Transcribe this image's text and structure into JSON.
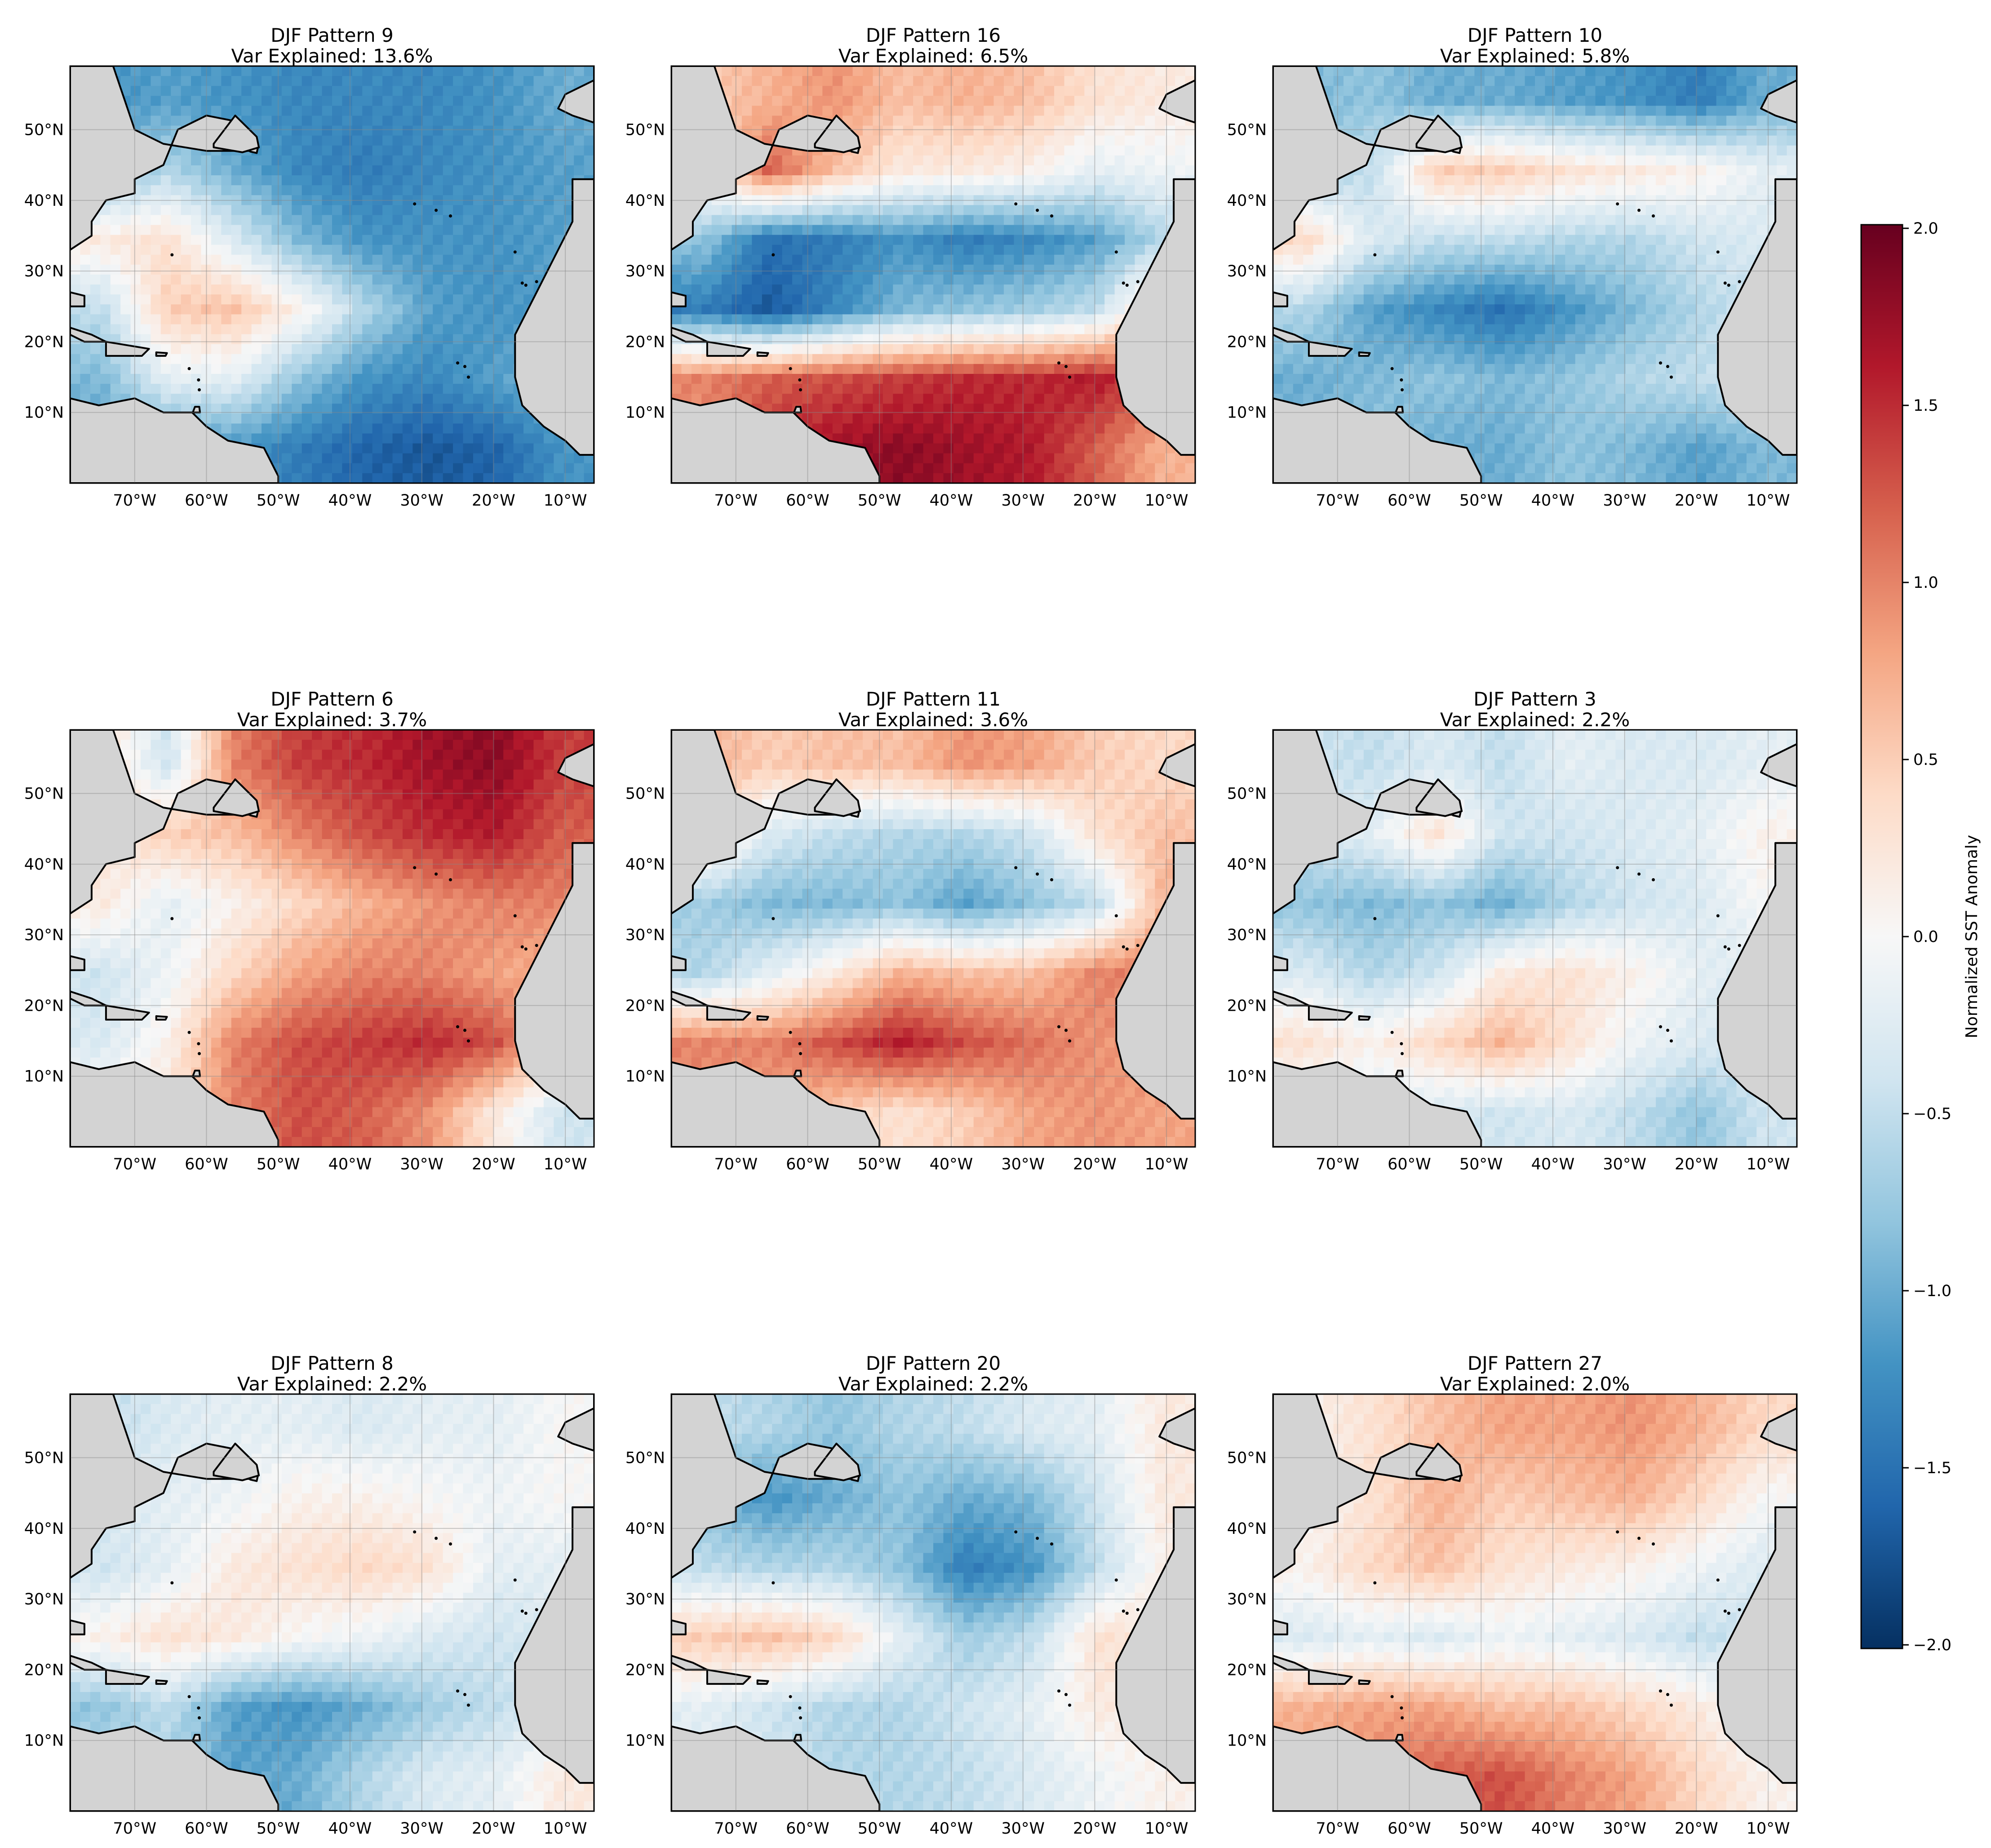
{
  "figure": {
    "colorbar": {
      "label": "Normalized SST Anomaly",
      "vmin": -2.0,
      "vmax": 2.0,
      "ticks": [
        2.0,
        1.5,
        1.0,
        0.5,
        0.0,
        -0.5,
        -1.0,
        -1.5,
        -2.0
      ],
      "tick_labels": [
        "2.0",
        "1.5",
        "1.0",
        "0.5",
        "0.0",
        "−0.5",
        "−1.0",
        "−1.5",
        "−2.0"
      ],
      "colormap": "RdBu_r",
      "colors": [
        "#053061",
        "#2166ac",
        "#4393c3",
        "#92c5de",
        "#d1e5f0",
        "#f7f7f7",
        "#fddbc7",
        "#f4a582",
        "#d6604d",
        "#b2182b",
        "#67001f"
      ]
    },
    "land_color": "#d3d3d3",
    "coastline_color": "#000000",
    "gridlines": true,
    "lon_tick_labels": [
      "70°W",
      "60°W",
      "50°W",
      "40°W",
      "30°W",
      "20°W",
      "10°W"
    ],
    "lat_tick_labels": [
      "50°N",
      "40°N",
      "30°N",
      "20°N",
      "10°N"
    ]
  },
  "chart_data": [
    {
      "type": "heatmap",
      "title": "DJF Pattern 9",
      "subtitle": "Var Explained: 13.6%",
      "lon_range": [
        -79,
        -6
      ],
      "lat_range": [
        0,
        60
      ],
      "field": [
        [
          -1.2,
          -1.1,
          -1.2,
          -1.3,
          -1.3,
          -1.3,
          -1.2,
          -1.0
        ],
        [
          -0.9,
          -0.6,
          -1.0,
          -1.3,
          -1.4,
          -1.3,
          -1.2,
          -1.1
        ],
        [
          0.2,
          0.3,
          -0.3,
          -0.9,
          -1.2,
          -1.2,
          -1.2,
          -1.1
        ],
        [
          -0.5,
          0.5,
          0.6,
          0.1,
          -0.6,
          -1.1,
          -1.2,
          -1.1
        ],
        [
          -0.9,
          -0.2,
          -0.2,
          -0.8,
          -1.2,
          -1.3,
          -1.1,
          -0.9
        ],
        [
          -1.1,
          -1.2,
          -1.2,
          -1.4,
          -1.6,
          -1.7,
          -1.6,
          -1.2
        ]
      ]
    },
    {
      "type": "heatmap",
      "title": "DJF Pattern 16",
      "subtitle": "Var Explained: 6.5%",
      "lon_range": [
        -79,
        -6
      ],
      "lat_range": [
        0,
        60
      ],
      "field": [
        [
          0.5,
          0.7,
          0.9,
          0.6,
          0.7,
          0.6,
          0.3,
          0.2
        ],
        [
          0.2,
          1.2,
          0.6,
          0.2,
          0.2,
          0.1,
          -0.2,
          -0.1
        ],
        [
          -0.8,
          -1.5,
          -1.4,
          -1.2,
          -1.4,
          -1.3,
          -1.1,
          -0.6
        ],
        [
          -1.4,
          -1.7,
          -1.3,
          -0.9,
          -0.8,
          -0.7,
          -0.5,
          0.6
        ],
        [
          1.0,
          1.2,
          1.3,
          1.4,
          1.5,
          1.5,
          1.6,
          1.2
        ],
        [
          0.9,
          1.5,
          1.7,
          1.8,
          1.7,
          1.6,
          1.2,
          0.7
        ]
      ]
    },
    {
      "type": "heatmap",
      "title": "DJF Pattern 10",
      "subtitle": "Var Explained: 5.8%",
      "lon_range": [
        -79,
        -6
      ],
      "lat_range": [
        0,
        60
      ],
      "field": [
        [
          -0.9,
          -0.8,
          -1.0,
          -1.0,
          -1.1,
          -1.2,
          -1.4,
          -1.0
        ],
        [
          -0.7,
          -0.5,
          0.5,
          0.5,
          0.3,
          0.2,
          0.1,
          -0.2
        ],
        [
          0.4,
          -0.3,
          -0.5,
          -0.5,
          -0.6,
          -0.6,
          -0.4,
          -0.3
        ],
        [
          -0.6,
          -1.1,
          -1.3,
          -1.5,
          -1.2,
          -0.9,
          -0.6,
          -0.4
        ],
        [
          -1.0,
          -0.9,
          -0.8,
          -0.9,
          -0.8,
          -0.6,
          -0.5,
          -0.4
        ],
        [
          -0.9,
          -0.8,
          -1.0,
          -1.0,
          -0.8,
          -0.9,
          -1.1,
          -0.9
        ]
      ]
    },
    {
      "type": "heatmap",
      "title": "DJF Pattern 6",
      "subtitle": "Var Explained: 3.7%",
      "lon_range": [
        -79,
        -6
      ],
      "lat_range": [
        0,
        60
      ],
      "field": [
        [
          0.3,
          -0.4,
          1.0,
          1.4,
          1.5,
          1.7,
          1.8,
          1.4
        ],
        [
          0.2,
          0.5,
          0.6,
          1.0,
          1.3,
          1.5,
          1.6,
          1.2
        ],
        [
          0.2,
          -0.2,
          0.1,
          0.4,
          0.7,
          0.9,
          1.0,
          1.0
        ],
        [
          -0.4,
          -0.1,
          0.4,
          0.8,
          1.0,
          1.0,
          0.8,
          0.7
        ],
        [
          -0.3,
          0.1,
          1.0,
          1.3,
          1.4,
          1.5,
          1.3,
          0.5
        ],
        [
          0.1,
          0.3,
          1.0,
          1.3,
          1.2,
          0.9,
          0.2,
          -0.4
        ]
      ]
    },
    {
      "type": "heatmap",
      "title": "DJF Pattern 11",
      "subtitle": "Var Explained: 3.6%",
      "lon_range": [
        -79,
        -6
      ],
      "lat_range": [
        0,
        60
      ],
      "field": [
        [
          0.7,
          0.5,
          0.6,
          0.6,
          0.9,
          0.8,
          0.5,
          0.4
        ],
        [
          0.4,
          -0.3,
          -0.5,
          -0.6,
          -0.6,
          -0.4,
          0.3,
          0.6
        ],
        [
          -0.7,
          -0.9,
          -0.9,
          -0.8,
          -1.1,
          -0.8,
          -0.5,
          0.7
        ],
        [
          -0.6,
          -0.2,
          0.2,
          0.7,
          0.6,
          0.6,
          1.0,
          1.0
        ],
        [
          1.0,
          1.0,
          1.3,
          1.6,
          1.3,
          1.1,
          0.9,
          0.9
        ],
        [
          0.9,
          0.8,
          0.5,
          0.3,
          0.5,
          0.8,
          0.9,
          0.8
        ]
      ]
    },
    {
      "type": "heatmap",
      "title": "DJF Pattern 3",
      "subtitle": "Var Explained: 2.2%",
      "lon_range": [
        -79,
        -6
      ],
      "lat_range": [
        0,
        60
      ],
      "field": [
        [
          -0.4,
          -0.5,
          -0.3,
          -0.5,
          -0.2,
          -0.3,
          -0.3,
          -0.2
        ],
        [
          -0.4,
          -0.2,
          0.3,
          -0.4,
          -0.4,
          -0.3,
          -0.2,
          0.1
        ],
        [
          -0.8,
          -0.9,
          -0.8,
          -1.0,
          -0.6,
          -0.4,
          -0.3,
          0.0
        ],
        [
          -0.3,
          -0.6,
          -0.4,
          0.2,
          0.3,
          0.1,
          -0.2,
          -0.3
        ],
        [
          0.3,
          0.1,
          0.4,
          0.7,
          0.3,
          -0.1,
          -0.3,
          -0.4
        ],
        [
          -0.2,
          -0.3,
          -0.3,
          -0.4,
          -0.3,
          -0.5,
          -0.8,
          -0.4
        ]
      ]
    },
    {
      "type": "heatmap",
      "title": "DJF Pattern 8",
      "subtitle": "Var Explained: 2.2%",
      "lon_range": [
        -79,
        -6
      ],
      "lat_range": [
        0,
        60
      ],
      "field": [
        [
          -0.5,
          -0.3,
          -0.2,
          -0.2,
          -0.3,
          -0.2,
          -0.2,
          0.0
        ],
        [
          -0.3,
          -0.2,
          -0.1,
          0.1,
          0.1,
          0.0,
          -0.1,
          0.0
        ],
        [
          -0.4,
          -0.2,
          0.2,
          0.3,
          0.4,
          0.3,
          -0.2,
          -0.2
        ],
        [
          0.1,
          0.3,
          0.2,
          0.0,
          -0.1,
          -0.3,
          -0.4,
          -0.3
        ],
        [
          -0.8,
          -0.5,
          -1.1,
          -1.2,
          -1.0,
          -0.7,
          -0.5,
          -0.3
        ],
        [
          -0.5,
          -0.7,
          -1.1,
          -1.0,
          -0.6,
          -0.3,
          -0.2,
          0.2
        ]
      ]
    },
    {
      "type": "heatmap",
      "title": "DJF Pattern 20",
      "subtitle": "Var Explained: 2.2%",
      "lon_range": [
        -79,
        -6
      ],
      "lat_range": [
        0,
        60
      ],
      "field": [
        [
          -0.5,
          -0.6,
          -0.8,
          -0.6,
          -0.5,
          -0.3,
          -0.2,
          0.2
        ],
        [
          -0.9,
          -1.2,
          -1.0,
          -0.8,
          -1.0,
          -0.9,
          -0.4,
          0.2
        ],
        [
          -0.5,
          -0.6,
          -0.6,
          -0.8,
          -1.4,
          -1.2,
          -0.5,
          0.1
        ],
        [
          0.5,
          0.6,
          0.4,
          -0.2,
          -0.7,
          -0.5,
          0.3,
          0.3
        ],
        [
          -0.2,
          -0.4,
          -0.6,
          -0.6,
          -0.4,
          -0.2,
          0.2,
          0.1
        ],
        [
          -0.3,
          -0.4,
          -0.6,
          -0.6,
          -0.5,
          -0.3,
          -0.1,
          0.1
        ]
      ]
    },
    {
      "type": "heatmap",
      "title": "DJF Pattern 27",
      "subtitle": "Var Explained: 2.0%",
      "lon_range": [
        -79,
        -6
      ],
      "lat_range": [
        0,
        60
      ],
      "field": [
        [
          0.1,
          0.3,
          0.6,
          0.8,
          0.8,
          0.9,
          0.7,
          0.4
        ],
        [
          0.0,
          0.3,
          0.7,
          0.5,
          0.6,
          0.7,
          0.4,
          0.0
        ],
        [
          0.1,
          0.4,
          0.6,
          0.3,
          0.2,
          0.1,
          -0.1,
          -0.3
        ],
        [
          -0.3,
          -0.2,
          -0.3,
          -0.1,
          -0.2,
          -0.3,
          -0.5,
          -0.4
        ],
        [
          0.7,
          0.8,
          0.8,
          0.6,
          0.6,
          0.4,
          0.2,
          -0.2
        ],
        [
          0.8,
          1.0,
          1.2,
          1.3,
          1.0,
          0.8,
          0.4,
          0.1
        ]
      ]
    }
  ]
}
